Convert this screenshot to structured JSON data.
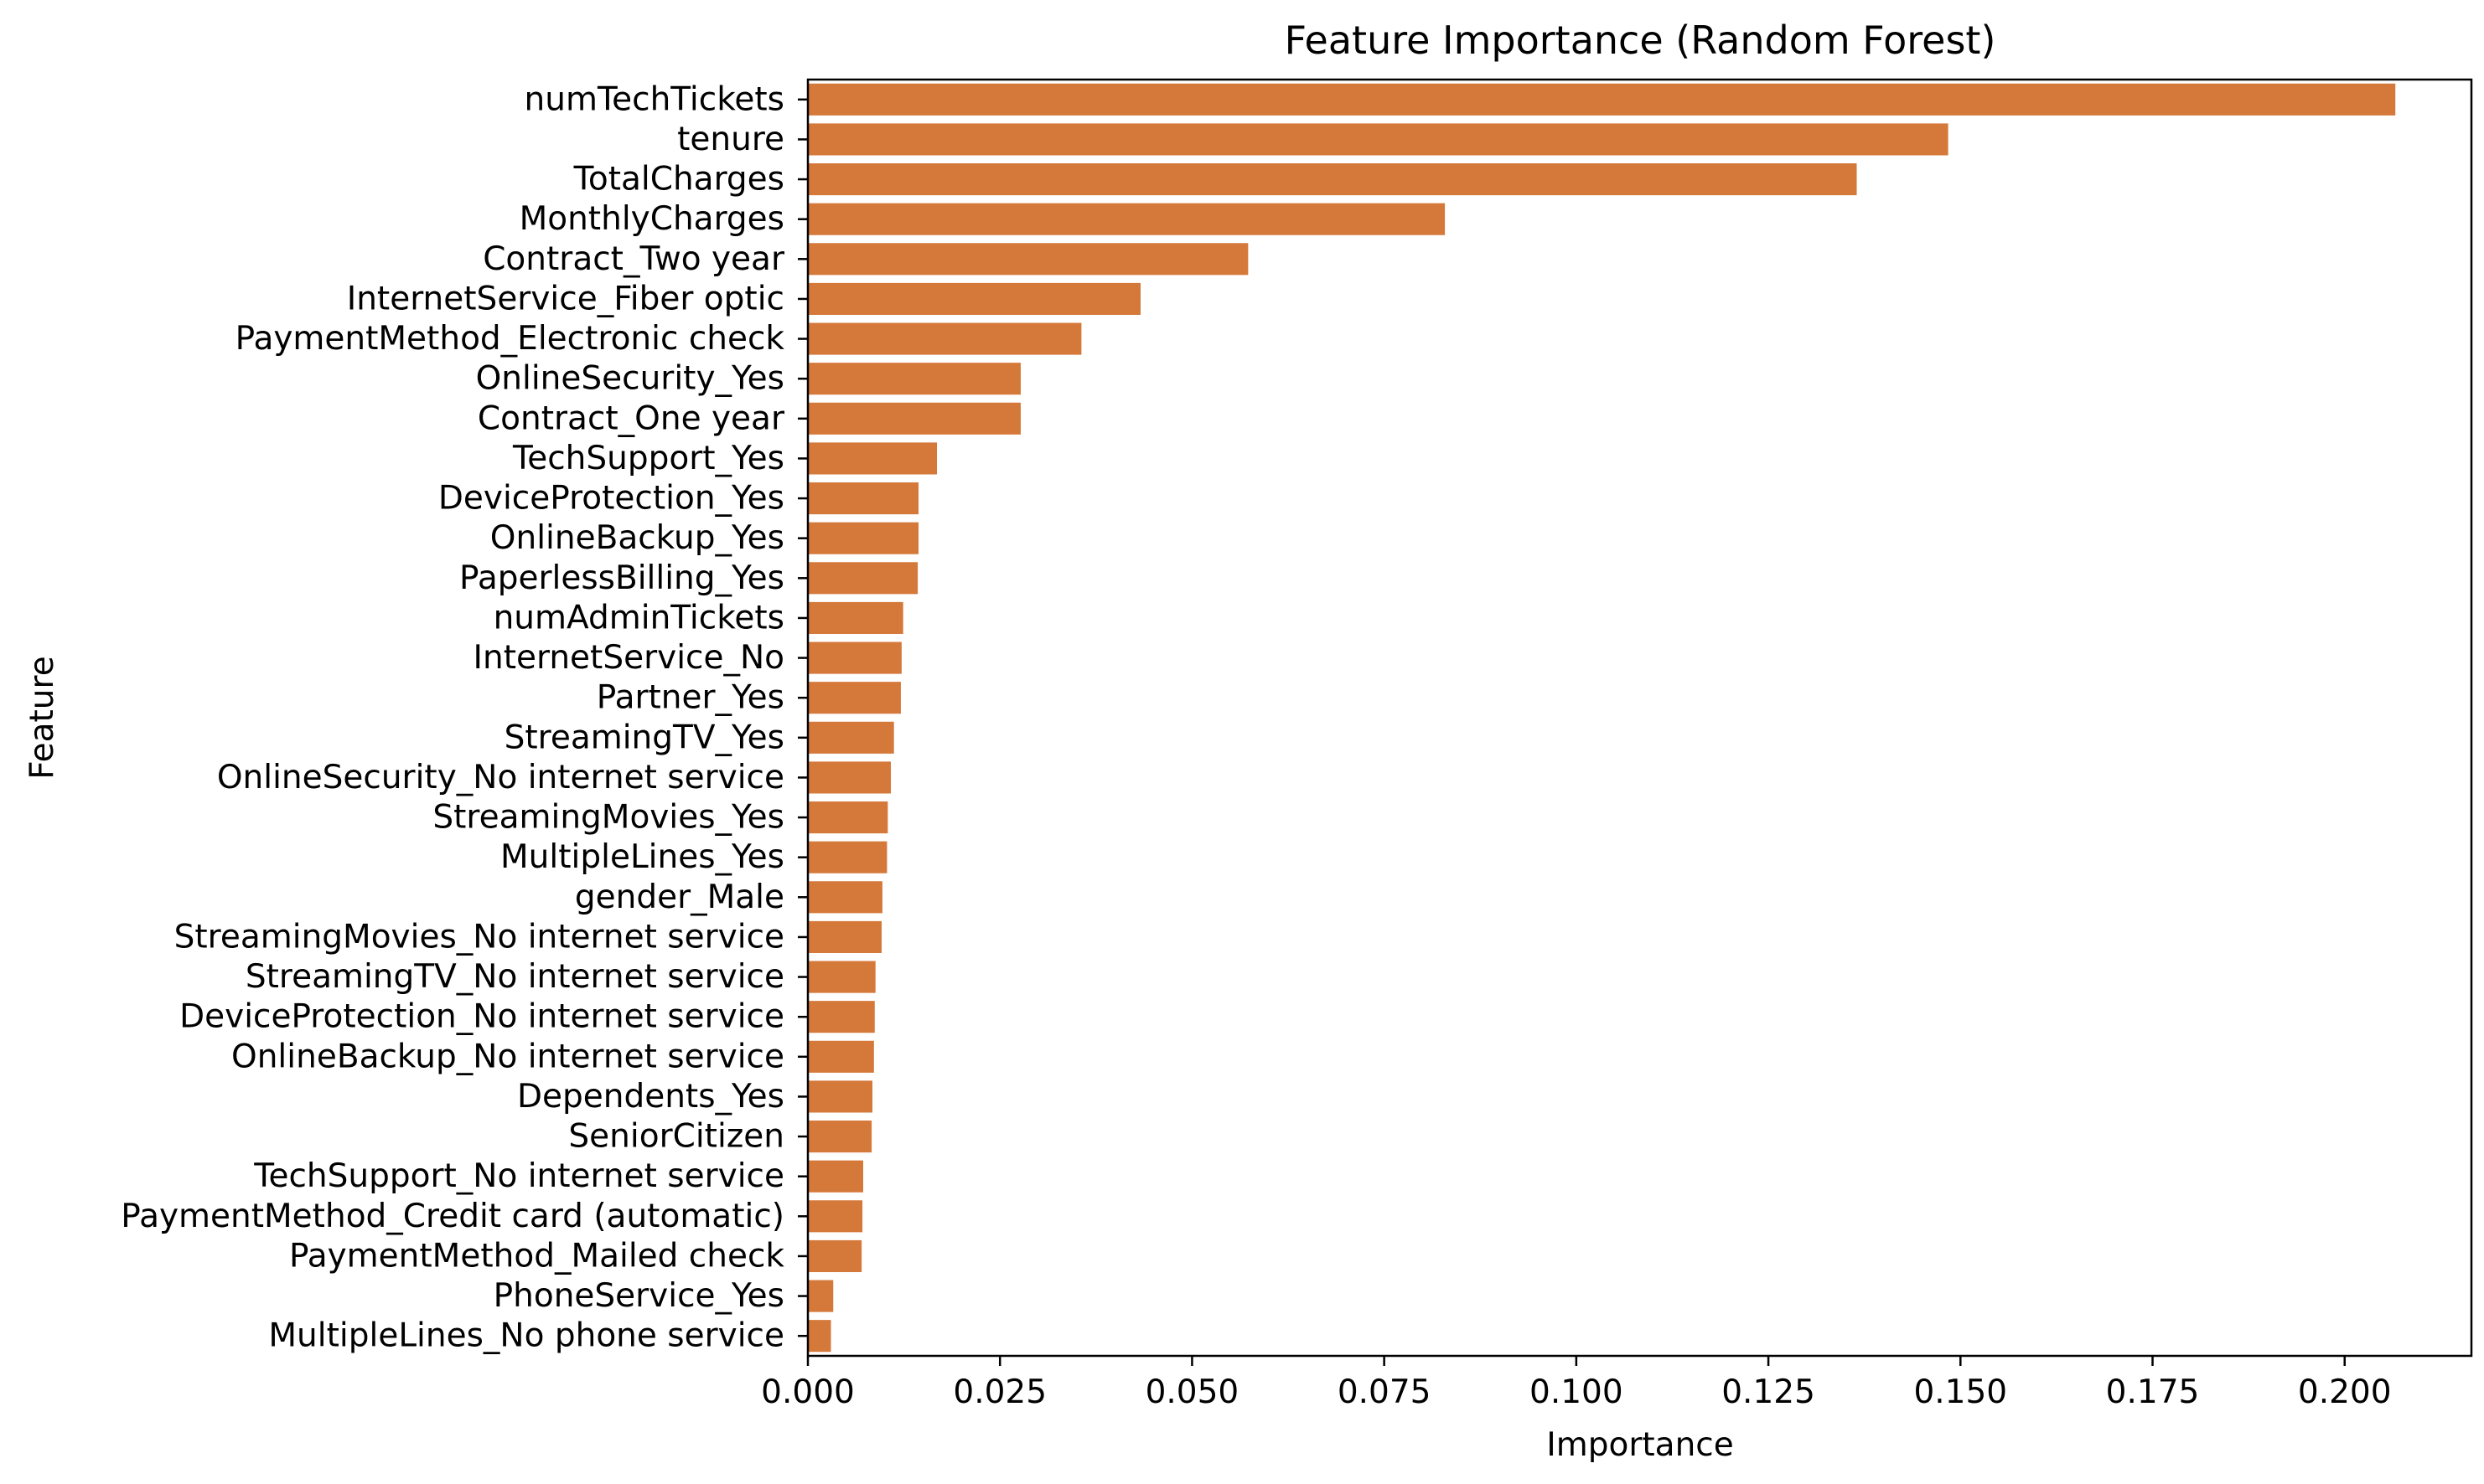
{
  "chart_data": {
    "type": "bar",
    "orientation": "horizontal",
    "title": "Feature Importance (Random Forest)",
    "xlabel": "Importance",
    "ylabel": "Feature",
    "xlim": [
      0.0,
      0.2165
    ],
    "xticks": [
      0.0,
      0.025,
      0.05,
      0.075,
      0.1,
      0.125,
      0.15,
      0.175,
      0.2
    ],
    "xtick_labels": [
      "0.000",
      "0.025",
      "0.050",
      "0.075",
      "0.100",
      "0.125",
      "0.150",
      "0.175",
      "0.200"
    ],
    "bar_color": "#d5793a",
    "grid": false,
    "categories": [
      "numTechTickets",
      "tenure",
      "TotalCharges",
      "MonthlyCharges",
      "Contract_Two year",
      "InternetService_Fiber optic",
      "PaymentMethod_Electronic check",
      "OnlineSecurity_Yes",
      "Contract_One year",
      "TechSupport_Yes",
      "DeviceProtection_Yes",
      "OnlineBackup_Yes",
      "PaperlessBilling_Yes",
      "numAdminTickets",
      "InternetService_No",
      "Partner_Yes",
      "StreamingTV_Yes",
      "OnlineSecurity_No internet service",
      "StreamingMovies_Yes",
      "MultipleLines_Yes",
      "gender_Male",
      "StreamingMovies_No internet service",
      "StreamingTV_No internet service",
      "DeviceProtection_No internet service",
      "OnlineBackup_No internet service",
      "Dependents_Yes",
      "SeniorCitizen",
      "TechSupport_No internet service",
      "PaymentMethod_Credit card (automatic)",
      "PaymentMethod_Mailed check",
      "PhoneService_Yes",
      "MultipleLines_No phone service"
    ],
    "values": [
      0.2066,
      0.1484,
      0.1365,
      0.0829,
      0.0573,
      0.0433,
      0.0356,
      0.0277,
      0.0277,
      0.0168,
      0.0144,
      0.0144,
      0.0143,
      0.0124,
      0.0122,
      0.0121,
      0.0112,
      0.0108,
      0.0104,
      0.0103,
      0.0097,
      0.0096,
      0.0088,
      0.0087,
      0.0086,
      0.0084,
      0.0083,
      0.0072,
      0.0071,
      0.007,
      0.0033,
      0.003
    ]
  }
}
